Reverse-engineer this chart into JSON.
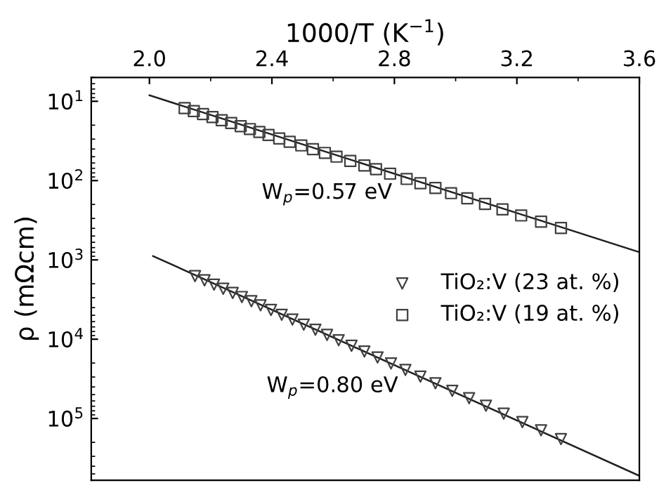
{
  "chart_data": {
    "type": "scatter",
    "xlabel": "1000/T (K$^{−1}$)",
    "ylabel": "ρ (mΩcm)",
    "log": "y",
    "grid": false,
    "legend": "right",
    "xlim": [
      1.81,
      3.6
    ],
    "xticks": [
      {
        "value": 2.0,
        "label": "2.0"
      },
      {
        "value": 2.4,
        "label": "2.4"
      },
      {
        "value": 2.8,
        "label": "2.8"
      },
      {
        "value": 3.2,
        "label": "3.2"
      },
      {
        "value": 3.6,
        "label": "3.6"
      }
    ],
    "ylim": [
      600000,
      5
    ],
    "yticks": [
      {
        "value": 10,
        "label": "10$^{1}$"
      },
      {
        "value": 100,
        "label": "10$^{2}$"
      },
      {
        "value": 1000,
        "label": "10$^{3}$"
      },
      {
        "value": 10000,
        "label": "10$^{4}$"
      },
      {
        "value": 100000,
        "label": "10$^{5}$"
      }
    ],
    "series": [
      {
        "name": "TiO₂:V (23 at. %)",
        "color": "#404040",
        "marker": "triangle",
        "x": [
          2.149,
          2.18,
          2.211,
          2.241,
          2.272,
          2.302,
          2.333,
          2.363,
          2.397,
          2.432,
          2.467,
          2.504,
          2.542,
          2.58,
          2.618,
          2.66,
          2.702,
          2.745,
          2.789,
          2.836,
          2.885,
          2.934,
          2.989,
          3.044,
          3.099,
          3.157,
          3.218,
          3.279,
          3.344
        ],
        "values": [
          1600,
          1810,
          2050,
          2310,
          2610,
          2940,
          3320,
          3740,
          4280,
          4920,
          5650,
          6550,
          7600,
          8830,
          10300,
          12100,
          14300,
          17000,
          20200,
          24400,
          29600,
          35900,
          44700,
          55500,
          69000,
          86900,
          111000,
          141000,
          182000
        ]
      },
      {
        "name": "TiO₂:V (19 at. %)",
        "color": "#404040",
        "marker": "square",
        "x": [
          2.115,
          2.145,
          2.175,
          2.206,
          2.236,
          2.267,
          2.298,
          2.328,
          2.359,
          2.389,
          2.424,
          2.458,
          2.496,
          2.534,
          2.573,
          2.611,
          2.656,
          2.702,
          2.74,
          2.786,
          2.84,
          2.885,
          2.934,
          2.985,
          3.038,
          3.096,
          3.153,
          3.214,
          3.279,
          3.344
        ],
        "values": [
          12.2,
          13.3,
          14.5,
          15.8,
          17.3,
          18.8,
          20.6,
          22.4,
          24.4,
          26.6,
          29.4,
          32.4,
          36.0,
          40.1,
          44.8,
          49.9,
          56.6,
          64.4,
          71.8,
          81.8,
          95.3,
          108,
          124,
          144,
          167,
          197,
          231,
          275,
          330,
          396
        ]
      },
      {
        "type": "line",
        "color": "#202020",
        "line_style": "solid",
        "marker": "none",
        "x": [
          2.012,
          3.6
        ],
        "values": [
          895,
          528000
        ]
      },
      {
        "type": "line",
        "color": "#202020",
        "line_style": "solid",
        "marker": "none",
        "x": [
          2.0,
          3.6
        ],
        "values": [
          8.4,
          800
        ]
      }
    ],
    "annotations": [
      "W$_{p}$=0.57 eV",
      "W$_{p}$=0.80 eV"
    ]
  }
}
